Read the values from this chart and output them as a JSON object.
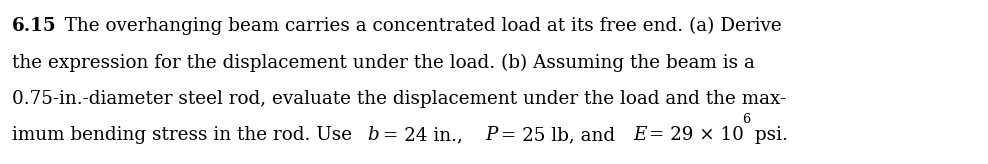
{
  "problem_number": "6.15",
  "line1_bold": "6.15",
  "line1_rest": "  The overhanging beam carries a concentrated load at its free end. (a) Derive",
  "line2": "the expression for the displacement under the load. (b) Assuming the beam is a",
  "line3": "0.75-in.-diameter steel rod, evaluate the displacement under the load and the max-",
  "line4_pre": "imum bending stress in the rod. Use ",
  "line4_b": "b",
  "line4_mid1": " = 24 in., ",
  "line4_P": "P",
  "line4_mid2": " = 25 lb, and ",
  "line4_E": "E",
  "line4_mid3": " = 29 × 10",
  "line4_sup": "6",
  "line4_post": " psi.",
  "background_color": "#ffffff",
  "text_color": "#000000",
  "font_size": 13.2,
  "fig_width": 9.88,
  "fig_height": 1.64,
  "dpi": 100
}
